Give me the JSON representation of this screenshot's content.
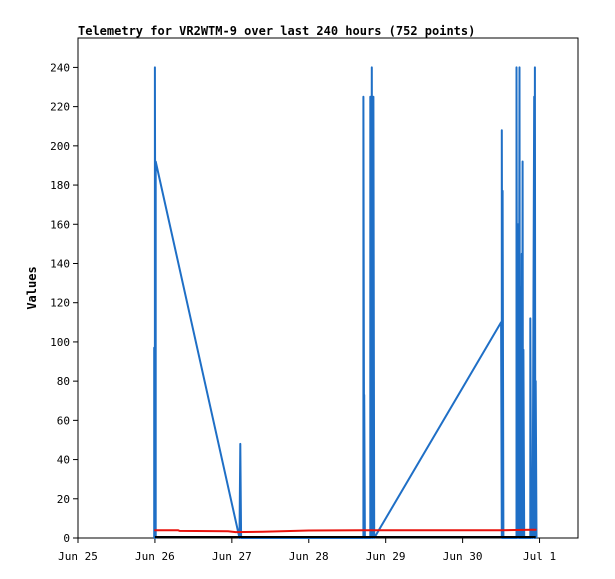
{
  "chart_data": {
    "type": "line",
    "title": "Telemetry for VR2WTM-9 over last 240 hours (752 points)",
    "xlabel": "",
    "ylabel": "Values",
    "ylim": [
      0,
      255
    ],
    "xlim": [
      0,
      6.5
    ],
    "grid": false,
    "legend": "none",
    "x_ticks": [
      {
        "x": 0,
        "label": "Jun 25"
      },
      {
        "x": 1,
        "label": "Jun 26"
      },
      {
        "x": 2,
        "label": "Jun 27"
      },
      {
        "x": 3,
        "label": "Jun 28"
      },
      {
        "x": 4,
        "label": "Jun 29"
      },
      {
        "x": 5,
        "label": "Jun 30"
      },
      {
        "x": 6,
        "label": "Jul 1"
      }
    ],
    "y_ticks": [
      0,
      20,
      40,
      60,
      80,
      100,
      120,
      140,
      160,
      180,
      200,
      220,
      240
    ],
    "series": [
      {
        "color": "#1f6fc6",
        "points": [
          [
            0.99,
            0
          ],
          [
            0.99,
            97
          ],
          [
            1.0,
            0
          ],
          [
            1.0,
            240
          ],
          [
            1.01,
            0
          ],
          [
            1.01,
            192
          ],
          [
            2.1,
            0
          ],
          [
            2.11,
            48
          ],
          [
            2.12,
            0
          ],
          [
            3.71,
            0
          ],
          [
            3.71,
            225
          ],
          [
            3.72,
            0
          ],
          [
            3.72,
            73
          ],
          [
            3.73,
            0
          ],
          [
            3.8,
            0
          ],
          [
            3.8,
            225
          ],
          [
            3.81,
            0
          ],
          [
            3.82,
            240
          ],
          [
            3.83,
            0
          ],
          [
            3.84,
            225
          ],
          [
            3.85,
            0
          ],
          [
            5.5,
            110
          ],
          [
            5.51,
            0
          ],
          [
            5.51,
            208
          ],
          [
            5.52,
            0
          ],
          [
            5.52,
            177
          ],
          [
            5.53,
            0
          ],
          [
            5.7,
            0
          ],
          [
            5.7,
            240
          ],
          [
            5.71,
            0
          ],
          [
            5.72,
            160
          ],
          [
            5.73,
            0
          ],
          [
            5.74,
            240
          ],
          [
            5.745,
            0
          ],
          [
            5.75,
            128
          ],
          [
            5.76,
            0
          ],
          [
            5.77,
            145
          ],
          [
            5.775,
            0
          ],
          [
            5.78,
            192
          ],
          [
            5.785,
            0
          ],
          [
            5.79,
            96
          ],
          [
            5.8,
            0
          ],
          [
            5.88,
            0
          ],
          [
            5.88,
            112
          ],
          [
            5.89,
            0
          ],
          [
            5.9,
            32
          ],
          [
            5.91,
            0
          ],
          [
            5.93,
            225
          ],
          [
            5.935,
            0
          ],
          [
            5.94,
            240
          ],
          [
            5.945,
            0
          ],
          [
            5.95,
            80
          ],
          [
            5.96,
            0
          ]
        ]
      },
      {
        "color": "#e8120c",
        "points": [
          [
            0.99,
            4.0
          ],
          [
            1.3,
            4.0
          ],
          [
            1.32,
            3.6
          ],
          [
            1.95,
            3.4
          ],
          [
            2.05,
            3.0
          ],
          [
            2.4,
            3.2
          ],
          [
            3.0,
            3.8
          ],
          [
            3.7,
            4.0
          ],
          [
            4.5,
            4.0
          ],
          [
            5.5,
            4.0
          ],
          [
            5.9,
            4.2
          ],
          [
            5.96,
            4.2
          ]
        ]
      },
      {
        "color": "#000000",
        "points": [
          [
            1.0,
            0.5
          ],
          [
            5.95,
            0.5
          ]
        ]
      }
    ]
  }
}
